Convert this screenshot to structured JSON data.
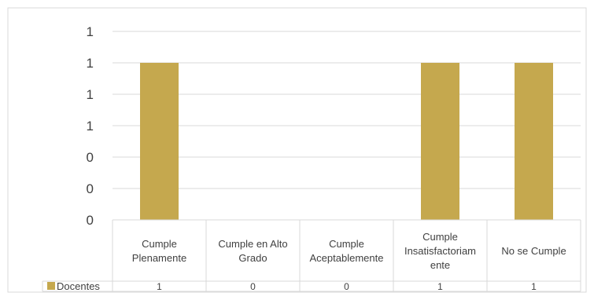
{
  "chart_data": {
    "type": "bar",
    "categories": [
      [
        "Cumple",
        "Plenamente"
      ],
      [
        "Cumple en Alto",
        "Grado"
      ],
      [
        "Cumple",
        "Aceptablemente"
      ],
      [
        "Cumple",
        "Insatisfactoriam",
        "ente"
      ],
      [
        "No se Cumple"
      ]
    ],
    "series": [
      {
        "name": "Docentes",
        "values": [
          1,
          0,
          0,
          1,
          1
        ],
        "color": "#C5A84E"
      }
    ],
    "y_tick_labels": [
      "0",
      "0",
      "0",
      "1",
      "1",
      "1",
      "1"
    ],
    "ylim": [
      0,
      1.2
    ],
    "grid": true,
    "data_table": true,
    "legend": "data-table-row"
  }
}
